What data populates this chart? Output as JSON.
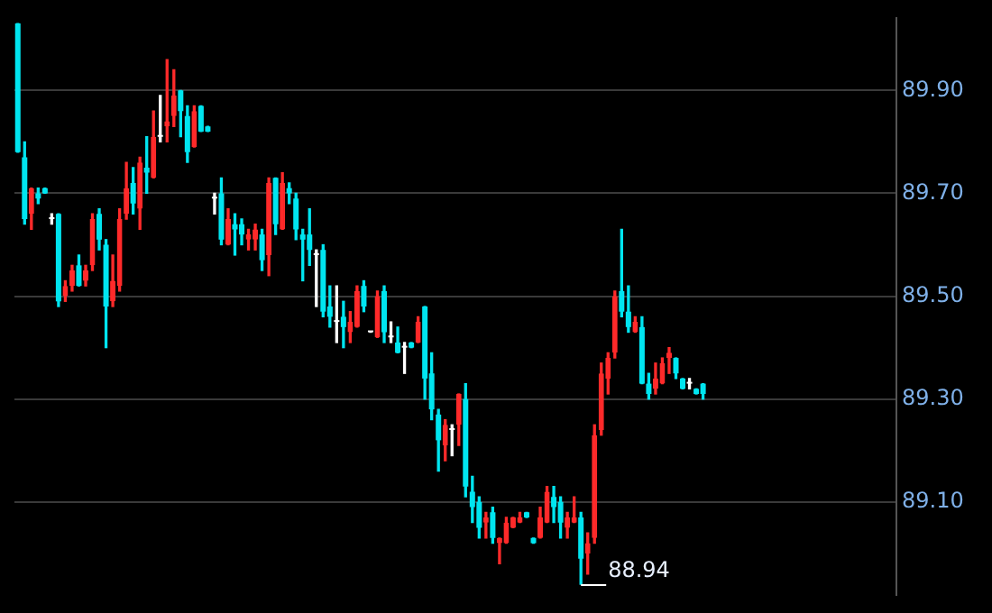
{
  "chart_data": {
    "type": "candlestick",
    "categories": [
      null,
      null,
      null,
      null,
      null,
      null,
      null,
      null,
      null,
      null,
      null,
      null,
      null,
      null,
      null,
      null,
      null,
      null,
      null,
      null,
      null,
      null,
      null,
      null,
      null,
      null,
      null,
      null,
      null,
      null,
      null,
      null,
      null,
      null,
      null,
      null,
      null,
      null,
      null,
      null,
      null,
      null,
      null,
      null,
      null,
      null,
      null,
      null,
      null,
      null,
      null,
      null,
      null,
      null,
      null,
      null,
      null,
      null,
      null,
      null,
      null,
      null,
      null,
      null,
      null,
      null,
      null,
      null,
      null,
      null,
      null,
      null,
      null,
      null,
      null,
      null,
      null,
      null,
      null,
      null,
      null,
      null,
      null,
      null,
      null,
      null,
      null,
      null,
      null,
      null,
      null,
      null,
      null,
      null,
      null,
      null,
      null,
      null,
      null,
      null,
      null,
      null,
      null,
      null,
      null,
      null,
      null,
      null,
      null,
      null,
      null,
      null,
      null,
      null,
      null,
      null,
      null,
      null,
      null,
      null,
      null,
      null,
      null,
      null,
      null,
      null,
      null,
      null,
      null,
      null
    ],
    "ohlc": [
      [
        90.03,
        90.03,
        89.78,
        89.78
      ],
      [
        89.77,
        89.8,
        89.64,
        89.65
      ],
      [
        89.66,
        89.71,
        89.63,
        89.71
      ],
      [
        89.7,
        89.71,
        89.68,
        89.69
      ],
      [
        89.71,
        89.71,
        89.7,
        89.7
      ],
      [
        89.65,
        89.66,
        89.64,
        89.65
      ],
      [
        89.66,
        89.66,
        89.48,
        89.49
      ],
      [
        89.5,
        89.53,
        89.49,
        89.52
      ],
      [
        89.52,
        89.56,
        89.51,
        89.55
      ],
      [
        89.56,
        89.58,
        89.52,
        89.52
      ],
      [
        89.53,
        89.56,
        89.52,
        89.55
      ],
      [
        89.56,
        89.66,
        89.55,
        89.65
      ],
      [
        89.66,
        89.67,
        89.59,
        89.61
      ],
      [
        89.6,
        89.61,
        89.4,
        89.48
      ],
      [
        89.49,
        89.58,
        89.48,
        89.53
      ],
      [
        89.52,
        89.67,
        89.51,
        89.65
      ],
      [
        89.66,
        89.76,
        89.65,
        89.71
      ],
      [
        89.72,
        89.75,
        89.66,
        89.68
      ],
      [
        89.67,
        89.77,
        89.63,
        89.76
      ],
      [
        89.75,
        89.81,
        89.7,
        89.74
      ],
      [
        89.73,
        89.86,
        89.73,
        89.81
      ],
      [
        89.81,
        89.89,
        89.8,
        89.81
      ],
      [
        89.83,
        89.96,
        89.8,
        89.84
      ],
      [
        89.85,
        89.94,
        89.83,
        89.89
      ],
      [
        89.9,
        89.9,
        89.81,
        89.86
      ],
      [
        89.85,
        89.87,
        89.76,
        89.78
      ],
      [
        89.79,
        89.87,
        89.79,
        89.86
      ],
      [
        89.87,
        89.87,
        89.82,
        89.82
      ],
      [
        89.83,
        89.83,
        89.82,
        89.82
      ],
      [
        89.69,
        89.7,
        89.66,
        89.69
      ],
      [
        89.7,
        89.73,
        89.6,
        89.61
      ],
      [
        89.6,
        89.67,
        89.6,
        89.65
      ],
      [
        89.64,
        89.66,
        89.58,
        89.63
      ],
      [
        89.64,
        89.65,
        89.6,
        89.62
      ],
      [
        89.61,
        89.63,
        89.59,
        89.62
      ],
      [
        89.61,
        89.64,
        89.59,
        89.63
      ],
      [
        89.62,
        89.63,
        89.55,
        89.57
      ],
      [
        89.58,
        89.73,
        89.54,
        89.72
      ],
      [
        89.73,
        89.73,
        89.62,
        89.64
      ],
      [
        89.63,
        89.74,
        89.63,
        89.72
      ],
      [
        89.71,
        89.72,
        89.68,
        89.7
      ],
      [
        89.69,
        89.7,
        89.61,
        89.63
      ],
      [
        89.62,
        89.63,
        89.53,
        89.61
      ],
      [
        89.62,
        89.67,
        89.56,
        89.59
      ],
      [
        89.58,
        89.59,
        89.48,
        89.58
      ],
      [
        89.59,
        89.6,
        89.46,
        89.47
      ],
      [
        89.48,
        89.52,
        89.44,
        89.46
      ],
      [
        89.45,
        89.52,
        89.41,
        89.45
      ],
      [
        89.46,
        89.49,
        89.4,
        89.44
      ],
      [
        89.43,
        89.47,
        89.41,
        89.45
      ],
      [
        89.44,
        89.52,
        89.44,
        89.51
      ],
      [
        89.52,
        89.53,
        89.47,
        89.48
      ],
      [
        89.43,
        89.43,
        89.43,
        89.43
      ],
      [
        89.42,
        89.51,
        89.42,
        89.5
      ],
      [
        89.51,
        89.52,
        89.41,
        89.43
      ],
      [
        89.42,
        89.45,
        89.41,
        89.42
      ],
      [
        89.41,
        89.44,
        89.39,
        89.39
      ],
      [
        89.4,
        89.41,
        89.35,
        89.4
      ],
      [
        89.41,
        89.41,
        89.4,
        89.4
      ],
      [
        89.41,
        89.46,
        89.41,
        89.45
      ],
      [
        89.48,
        89.48,
        89.3,
        89.34
      ],
      [
        89.35,
        89.39,
        89.26,
        89.28
      ],
      [
        89.27,
        89.28,
        89.16,
        89.22
      ],
      [
        89.21,
        89.26,
        89.18,
        89.25
      ],
      [
        89.24,
        89.25,
        89.19,
        89.24
      ],
      [
        89.25,
        89.31,
        89.21,
        89.31
      ],
      [
        89.3,
        89.33,
        89.11,
        89.13
      ],
      [
        89.12,
        89.15,
        89.06,
        89.09
      ],
      [
        89.1,
        89.11,
        89.03,
        89.05
      ],
      [
        89.06,
        89.08,
        89.03,
        89.07
      ],
      [
        89.08,
        89.09,
        89.02,
        89.03
      ],
      [
        89.02,
        89.03,
        88.98,
        89.03
      ],
      [
        89.02,
        89.07,
        89.02,
        89.06
      ],
      [
        89.05,
        89.07,
        89.05,
        89.07
      ],
      [
        89.06,
        89.08,
        89.06,
        89.07
      ],
      [
        89.08,
        89.08,
        89.07,
        89.07
      ],
      [
        89.03,
        89.03,
        89.02,
        89.02
      ],
      [
        89.03,
        89.09,
        89.03,
        89.07
      ],
      [
        89.06,
        89.13,
        89.06,
        89.12
      ],
      [
        89.11,
        89.13,
        89.06,
        89.09
      ],
      [
        89.1,
        89.11,
        89.03,
        89.06
      ],
      [
        89.05,
        89.08,
        89.03,
        89.07
      ],
      [
        89.06,
        89.11,
        89.06,
        89.07
      ],
      [
        89.07,
        89.08,
        88.94,
        88.99
      ],
      [
        89.0,
        89.04,
        88.96,
        89.02
      ],
      [
        89.03,
        89.25,
        89.02,
        89.23
      ],
      [
        89.24,
        89.37,
        89.23,
        89.35
      ],
      [
        89.34,
        89.39,
        89.31,
        89.38
      ],
      [
        89.39,
        89.51,
        89.38,
        89.5
      ],
      [
        89.51,
        89.63,
        89.46,
        89.47
      ],
      [
        89.47,
        89.52,
        89.43,
        89.44
      ],
      [
        89.43,
        89.46,
        89.43,
        89.45
      ],
      [
        89.44,
        89.46,
        89.33,
        89.33
      ],
      [
        89.33,
        89.35,
        89.3,
        89.31
      ],
      [
        89.32,
        89.37,
        89.31,
        89.34
      ],
      [
        89.33,
        89.38,
        89.33,
        89.37
      ],
      [
        89.38,
        89.4,
        89.35,
        89.39
      ],
      [
        89.38,
        89.38,
        89.34,
        89.35
      ],
      [
        89.34,
        89.34,
        89.32,
        89.32
      ],
      [
        89.33,
        89.34,
        89.32,
        89.33
      ],
      [
        89.32,
        89.32,
        89.31,
        89.31
      ],
      [
        89.33,
        89.33,
        89.3,
        89.31
      ],
      null,
      null,
      null,
      null,
      null,
      null,
      null,
      null,
      null,
      null,
      null,
      null,
      null,
      null,
      null,
      null,
      null,
      null,
      null,
      null,
      null,
      null,
      null,
      null,
      null,
      null,
      null,
      null
    ],
    "ylim": [
      88.92,
      90.04
    ],
    "yticks": [
      {
        "value": 89.1,
        "label": "89.10"
      },
      {
        "value": 89.3,
        "label": "89.30"
      },
      {
        "value": 89.5,
        "label": "89.50"
      },
      {
        "value": 89.7,
        "label": "89.70"
      },
      {
        "value": 89.9,
        "label": "89.90"
      }
    ],
    "grid": "y",
    "tick_labels": "y",
    "annotations": [
      "88.94"
    ]
  }
}
